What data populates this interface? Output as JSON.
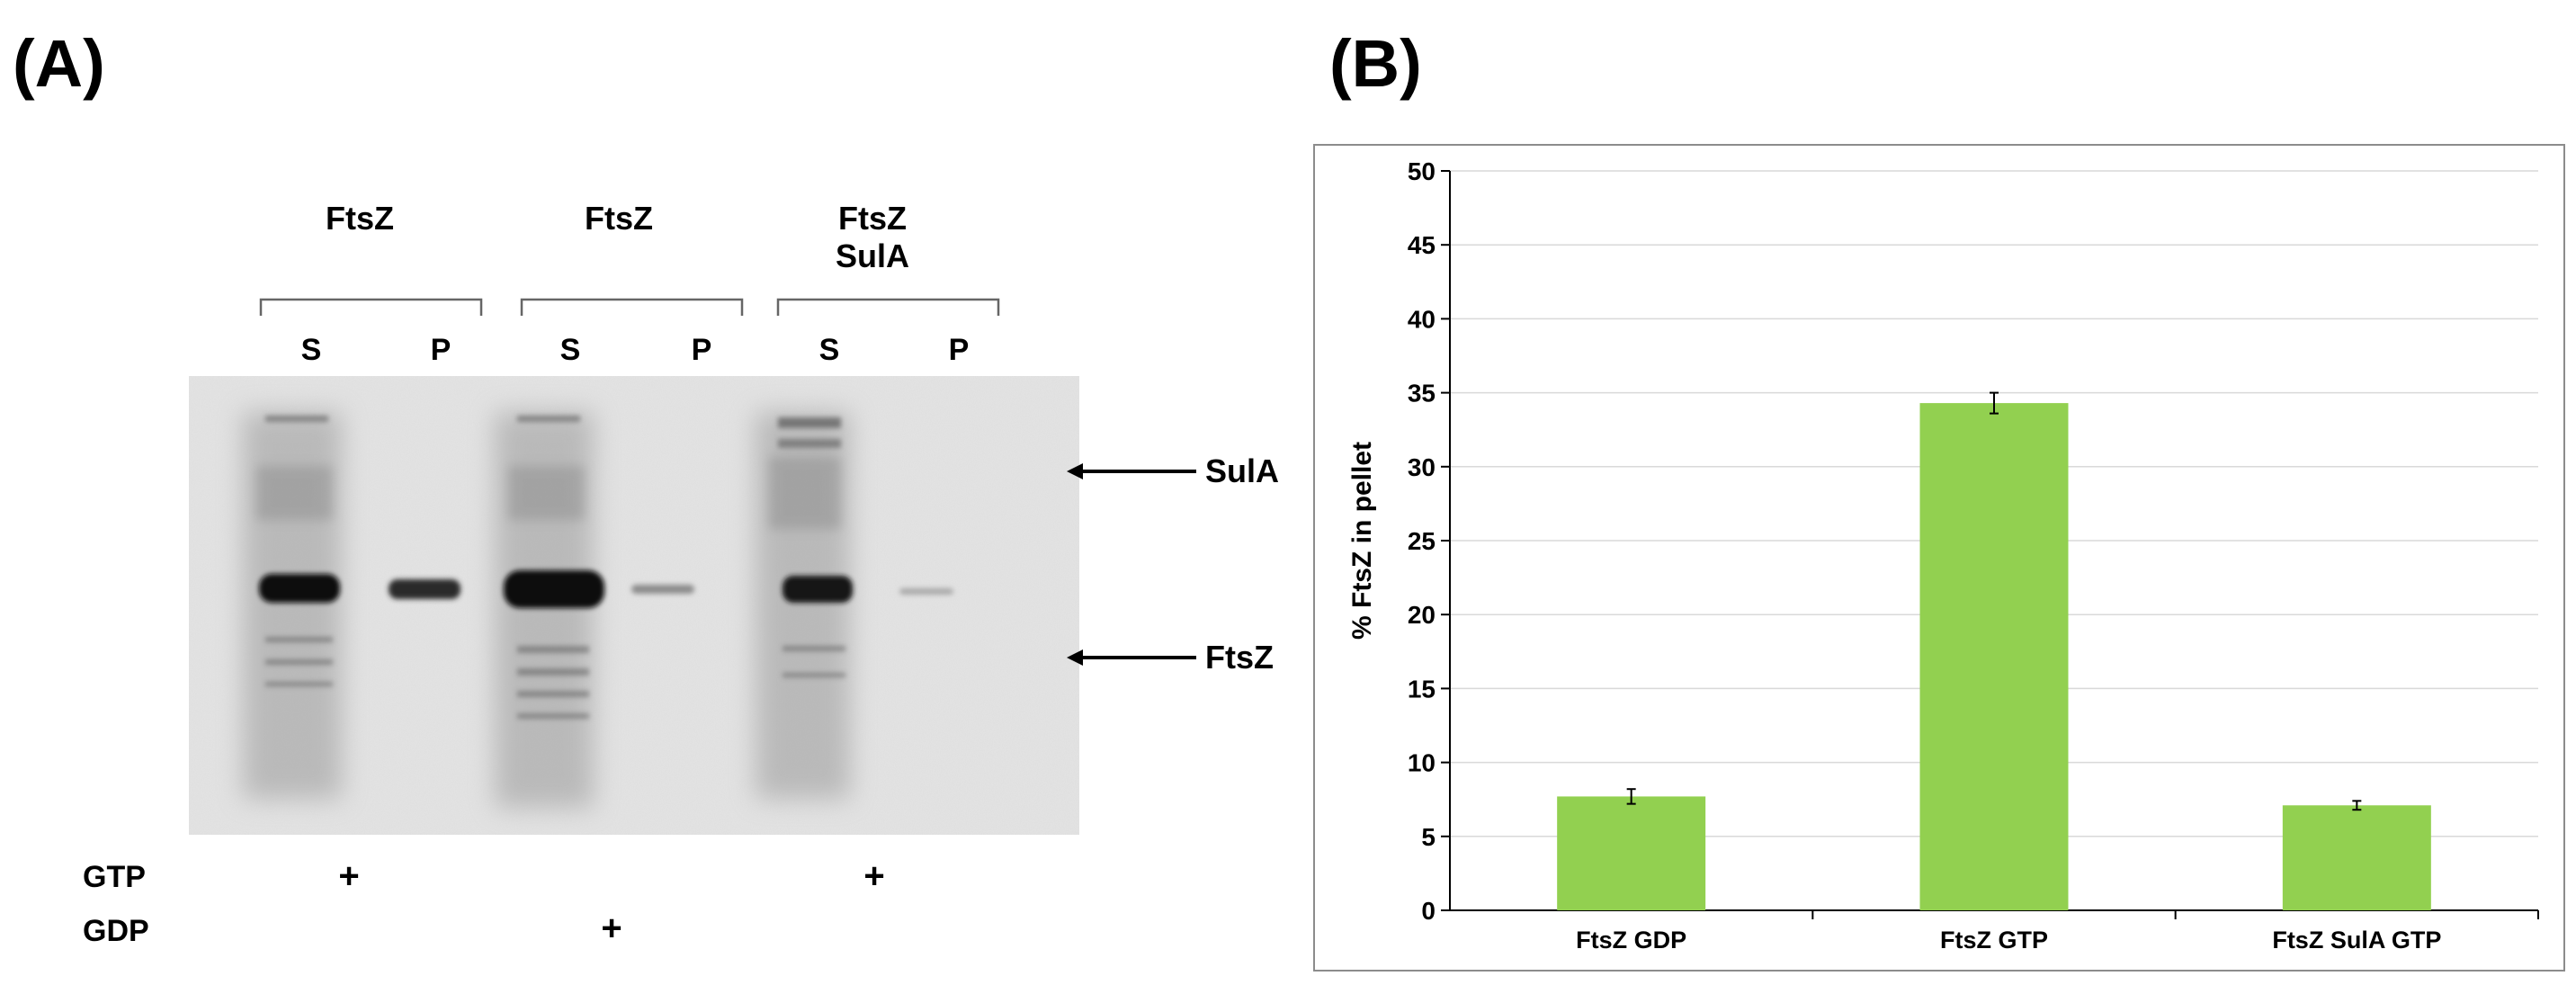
{
  "panels": {
    "a_label": "(A)",
    "b_label": "(B)"
  },
  "gel": {
    "groups": [
      {
        "line1": "FtsZ",
        "line2": ""
      },
      {
        "line1": "FtsZ",
        "line2": ""
      },
      {
        "line1": "FtsZ",
        "line2": "SulA"
      }
    ],
    "lanes": [
      "S",
      "P",
      "S",
      "P",
      "S",
      "P"
    ],
    "annotations": {
      "sula": "SulA",
      "ftsz": "FtsZ"
    },
    "conditions": {
      "gtp": "GTP",
      "gdp": "GDP",
      "plus": "+"
    }
  },
  "chart_data": {
    "type": "bar",
    "categories": [
      "FtsZ GDP",
      "FtsZ GTP",
      "FtsZ SulA GTP"
    ],
    "values": [
      7.7,
      34.3,
      7.1
    ],
    "errors": [
      0.5,
      0.7,
      0.3
    ],
    "ylabel": "% FtsZ in pellet",
    "xlabel": "",
    "ylim": [
      0,
      50
    ],
    "yticks": [
      0,
      5,
      10,
      15,
      20,
      25,
      30,
      35,
      40,
      45,
      50
    ],
    "grid": true,
    "bar_color": "#92d050"
  }
}
